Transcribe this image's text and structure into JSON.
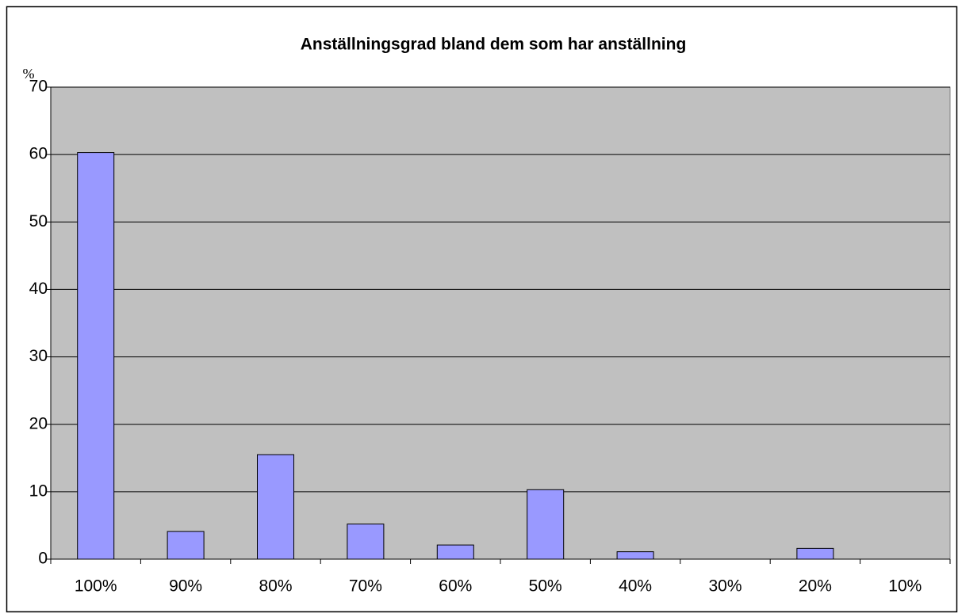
{
  "chart_data": {
    "type": "bar",
    "title": "Anställningsgrad bland dem som har anställning",
    "y_label": "%",
    "categories": [
      "100%",
      "90%",
      "80%",
      "70%",
      "60%",
      "50%",
      "40%",
      "30%",
      "20%",
      "10%"
    ],
    "values": [
      60.3,
      4.1,
      15.5,
      5.2,
      2.1,
      10.3,
      1.1,
      0,
      1.6,
      0
    ],
    "color": "#9999ff",
    "ylim": [
      0,
      70
    ],
    "yticks": [
      0,
      10,
      20,
      30,
      40,
      50,
      60,
      70
    ],
    "grid": true
  }
}
